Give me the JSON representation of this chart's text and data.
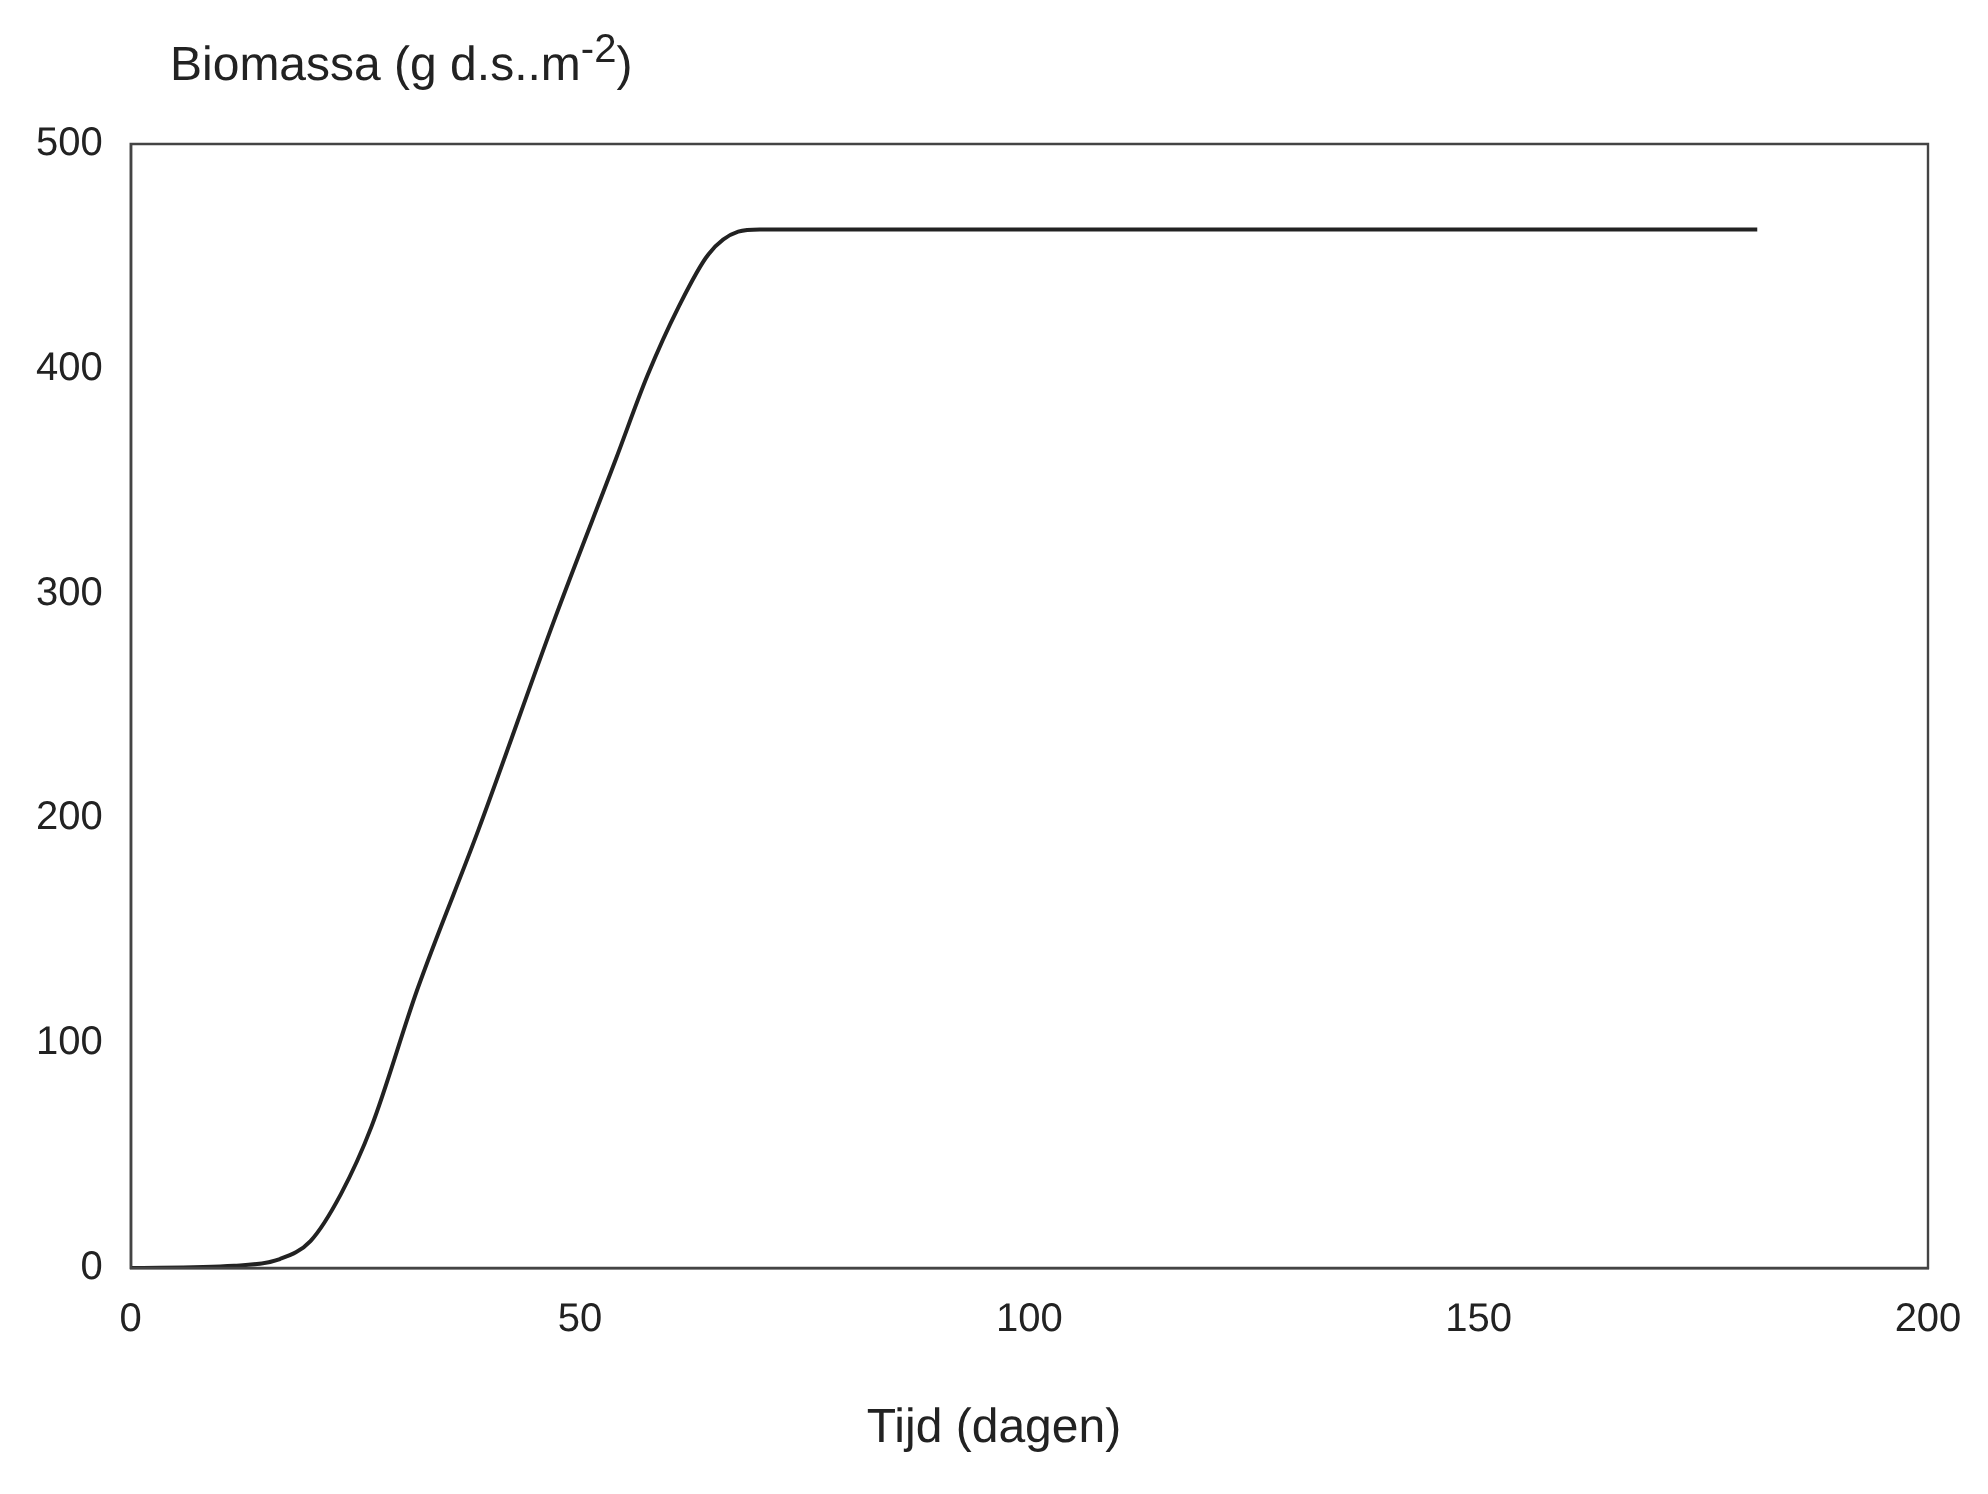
{
  "chart_data": {
    "type": "line",
    "ylabel": "Biomassa (g d.s..m$^{-2}$)",
    "xlabel": "Tijd (dagen)",
    "series": [
      {
        "color": "#222222",
        "x": [
          0,
          11.5,
          16.6,
          20,
          23.4,
          26.8,
          31.9,
          38.7,
          47.2,
          54,
          57.5,
          60.9,
          64.3,
          67.6,
          70,
          100,
          140,
          181
        ],
        "values": [
          0,
          1,
          4,
          12,
          33,
          63,
          124,
          195,
          289,
          360,
          397,
          427,
          451,
          461,
          462,
          462,
          462,
          462
        ]
      }
    ],
    "xlim": [
      0,
      200
    ],
    "xticks": [
      0,
      50,
      100,
      150,
      200
    ],
    "ylim": [
      0,
      500
    ],
    "yticks": [
      0,
      100,
      200,
      300,
      400,
      500
    ],
    "grid": false,
    "legend": false,
    "marker": "none",
    "line_style": "solid"
  }
}
